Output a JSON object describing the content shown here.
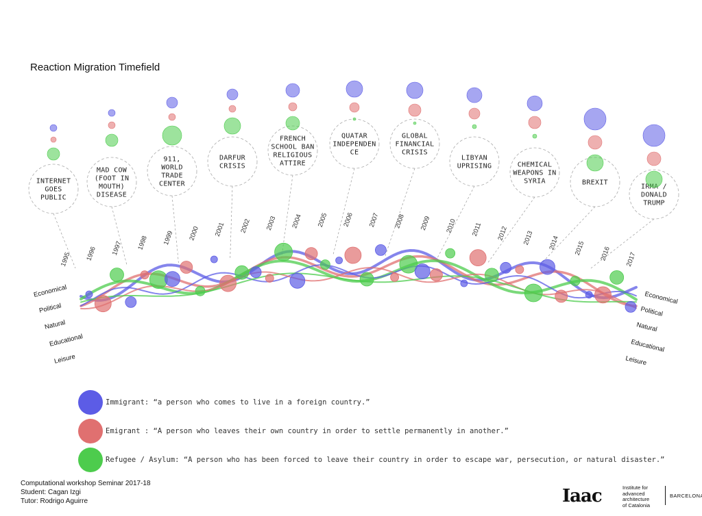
{
  "title": "Reaction Migration Timefield",
  "colors": {
    "immigrant": "#5c5ce6",
    "emigrant": "#e07070",
    "refugee": "#4dcc4d"
  },
  "events": [
    {
      "lines": [
        "INTERNET",
        "GOES",
        "PUBLIC"
      ],
      "sizes": [
        5,
        4,
        9
      ]
    },
    {
      "lines": [
        "MAD COW",
        "(FOOT IN",
        "MOUTH)",
        "DISEASE"
      ],
      "sizes": [
        5,
        5,
        9
      ]
    },
    {
      "lines": [
        "911,",
        "WORLD",
        "TRADE",
        "CENTER"
      ],
      "sizes": [
        8,
        5,
        14
      ]
    },
    {
      "lines": [
        "DARFUR",
        "CRISIS"
      ],
      "sizes": [
        8,
        5,
        12
      ]
    },
    {
      "lines": [
        "FRENCH",
        "SCHOOL BAN",
        "RELIGIOUS",
        "ATTIRE"
      ],
      "sizes": [
        10,
        6,
        10
      ]
    },
    {
      "lines": [
        "QUATAR",
        "INDEPENDEN",
        "CE"
      ],
      "sizes": [
        12,
        7,
        2
      ]
    },
    {
      "lines": [
        "GLOBAL",
        "FINANCIAL",
        "CRISIS"
      ],
      "sizes": [
        12,
        9,
        2
      ]
    },
    {
      "lines": [
        "LIBYAN",
        "UPRISING"
      ],
      "sizes": [
        11,
        8,
        3
      ]
    },
    {
      "lines": [
        "CHEMICAL",
        "WEAPONS IN",
        "SYRIA"
      ],
      "sizes": [
        11,
        9,
        3
      ]
    },
    {
      "lines": [
        "BREXIT"
      ],
      "sizes": [
        16,
        10,
        12
      ]
    },
    {
      "lines": [
        "IRMA /",
        "DONALD",
        "TRUMP"
      ],
      "sizes": [
        16,
        10,
        12
      ]
    }
  ],
  "years": [
    "1995",
    "1996",
    "1997",
    "1998",
    "1999",
    "2000",
    "2001",
    "2002",
    "2003",
    "2004",
    "2005",
    "2006",
    "2007",
    "2008",
    "2009",
    "2010",
    "2011",
    "2012",
    "2013",
    "2014",
    "2015",
    "2016",
    "2017"
  ],
  "categories_left": [
    "Economical",
    "Political",
    "Natural",
    "Educational",
    "Leisure"
  ],
  "categories_right": [
    "Economical",
    "Political",
    "Natural",
    "Educational",
    "Leisure"
  ],
  "legend": [
    {
      "key": "immigrant",
      "text": "Immigrant: “a person who comes to live in a foreign country.”"
    },
    {
      "key": "emigrant",
      "text": "Emigrant : “A person who leaves their own country in order to settle permanently in another.”"
    },
    {
      "key": "refugee",
      "text": "Refugee / Asylum: “A person who has been forced to leave their country in order to escape war, persecution, or natural disaster.”"
    }
  ],
  "footer": {
    "line1": "Computational workshop Seminar 2017-18",
    "line2": "Student: Cagan Izgi",
    "line3": "Tutor: Rodrigo Aguirre"
  },
  "logo": {
    "mark": "Iaac",
    "institute": [
      "Institute for",
      "advanced",
      "architecture",
      "of Catalonia"
    ],
    "city": "BARCELONA"
  }
}
